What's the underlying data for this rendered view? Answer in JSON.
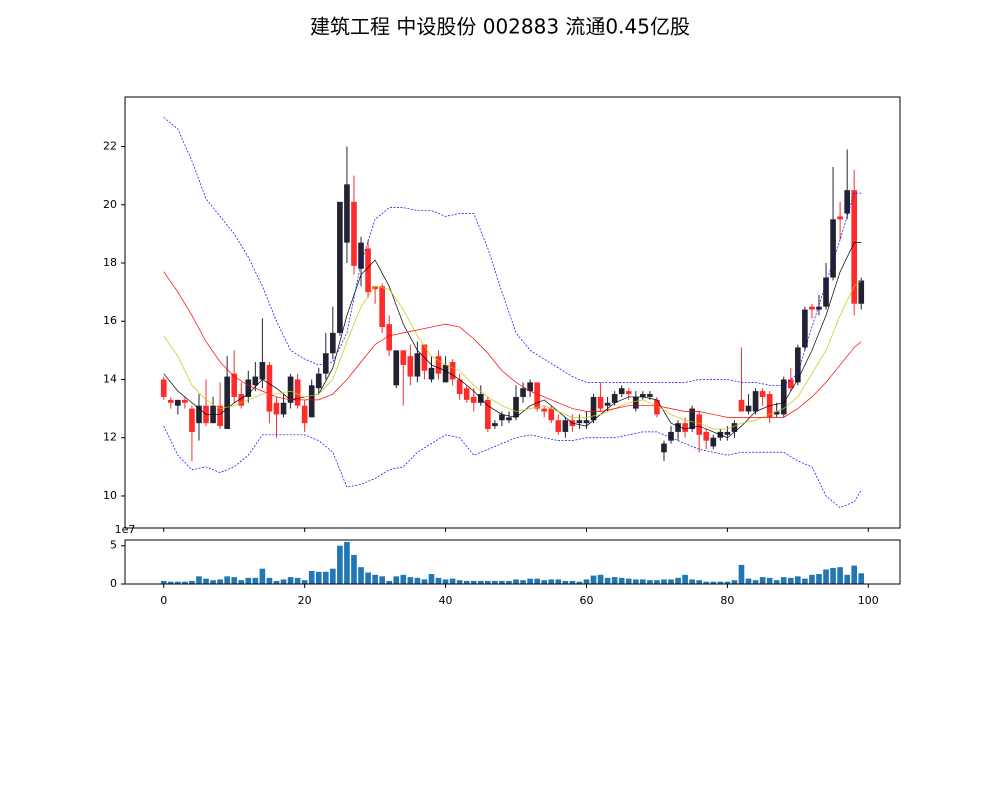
{
  "chart_data": {
    "type": "candlestick",
    "title": "建筑工程 中设股份 002883 流通0.45亿股",
    "x": [
      0,
      1,
      2,
      3,
      4,
      5,
      6,
      7,
      8,
      9,
      10,
      11,
      12,
      13,
      14,
      15,
      16,
      17,
      18,
      19,
      20,
      21,
      22,
      23,
      24,
      25,
      26,
      27,
      28,
      29,
      30,
      31,
      32,
      33,
      34,
      35,
      36,
      37,
      38,
      39,
      40,
      41,
      42,
      43,
      44,
      45,
      46,
      47,
      48,
      49,
      50,
      51,
      52,
      53,
      54,
      55,
      56,
      57,
      58,
      59,
      60,
      61,
      62,
      63,
      64,
      65,
      66,
      67,
      68,
      69,
      70,
      71,
      72,
      73,
      74,
      75,
      76,
      77,
      78,
      79,
      80,
      81,
      82,
      83,
      84,
      85,
      86,
      87,
      88,
      89,
      90,
      91,
      92,
      93,
      94,
      95,
      96,
      97,
      98,
      99
    ],
    "open": [
      14.0,
      13.3,
      13.1,
      13.3,
      13.0,
      12.5,
      13.1,
      12.5,
      13.1,
      12.3,
      14.2,
      13.5,
      13.4,
      13.8,
      14.0,
      14.5,
      13.2,
      12.8,
      13.2,
      14.0,
      13.1,
      12.7,
      13.7,
      14.2,
      14.9,
      15.6,
      18.7,
      20.1,
      17.8,
      18.5,
      17.2,
      17.2,
      15.9,
      13.8,
      15.0,
      14.8,
      14.1,
      15.2,
      14.0,
      14.8,
      13.9,
      14.6,
      14.0,
      13.7,
      13.4,
      13.2,
      13.3,
      12.4,
      12.6,
      12.6,
      12.7,
      13.4,
      13.6,
      13.9,
      13.0,
      13.0,
      12.6,
      12.2,
      12.6,
      12.5,
      12.5,
      12.6,
      13.4,
      13.1,
      13.2,
      13.5,
      13.6,
      13.0,
      13.4,
      13.4,
      13.3,
      11.5,
      11.9,
      12.2,
      12.5,
      12.3,
      12.8,
      12.2,
      11.7,
      12.0,
      12.1,
      12.2,
      13.3,
      12.9,
      12.9,
      13.6,
      13.5,
      12.8,
      12.8,
      14.0,
      13.9,
      15.1,
      16.5,
      16.4,
      16.5,
      17.5,
      19.6,
      19.7,
      20.5,
      16.6
    ],
    "high": [
      14.1,
      13.4,
      13.3,
      13.4,
      13.1,
      13.5,
      14.0,
      13.4,
      13.9,
      14.8,
      15.0,
      13.9,
      14.3,
      14.6,
      16.1,
      14.6,
      13.4,
      13.5,
      14.2,
      14.2,
      13.3,
      14.0,
      14.4,
      15.6,
      16.5,
      20.1,
      22.0,
      21.0,
      18.9,
      18.8,
      17.2,
      17.3,
      16.2,
      15.0,
      15.0,
      15.2,
      15.3,
      15.2,
      14.8,
      15.0,
      14.8,
      14.7,
      14.2,
      13.8,
      13.7,
      13.8,
      13.4,
      12.6,
      12.9,
      12.9,
      13.8,
      13.9,
      14.0,
      13.9,
      13.1,
      13.1,
      12.8,
      12.7,
      12.8,
      12.8,
      12.9,
      13.5,
      13.9,
      13.4,
      13.6,
      13.8,
      13.7,
      13.6,
      13.6,
      13.6,
      13.4,
      11.9,
      12.4,
      12.6,
      12.7,
      13.1,
      12.9,
      12.3,
      12.1,
      12.3,
      12.4,
      12.6,
      15.1,
      13.5,
      13.7,
      13.7,
      13.6,
      13.2,
      14.1,
      14.4,
      15.2,
      16.5,
      16.6,
      16.9,
      18.0,
      21.3,
      20.1,
      21.9,
      21.2,
      17.5
    ],
    "low": [
      13.3,
      13.0,
      12.8,
      13.0,
      11.2,
      11.9,
      12.4,
      12.5,
      12.3,
      12.3,
      13.2,
      13.0,
      13.2,
      13.6,
      13.7,
      12.5,
      12.0,
      12.7,
      13.0,
      13.0,
      12.2,
      12.7,
      13.5,
      14.0,
      14.7,
      15.5,
      18.0,
      17.6,
      17.2,
      16.8,
      16.6,
      15.6,
      14.8,
      13.7,
      13.1,
      13.8,
      13.9,
      14.0,
      13.9,
      14.0,
      13.9,
      13.8,
      13.3,
      13.2,
      12.9,
      13.1,
      12.2,
      12.3,
      12.4,
      12.5,
      12.6,
      13.2,
      13.4,
      12.9,
      12.7,
      12.5,
      12.1,
      12.0,
      12.2,
      12.3,
      12.3,
      12.5,
      12.9,
      12.9,
      13.1,
      13.4,
      13.3,
      12.9,
      13.3,
      13.3,
      12.7,
      11.2,
      11.8,
      11.9,
      12.0,
      12.2,
      11.5,
      11.6,
      11.6,
      11.9,
      11.9,
      12.0,
      12.9,
      12.8,
      12.8,
      13.1,
      12.5,
      12.7,
      12.7,
      13.6,
      13.8,
      15.0,
      16.1,
      16.2,
      16.4,
      17.4,
      18.8,
      19.5,
      16.2,
      16.4
    ],
    "close": [
      13.4,
      13.2,
      13.3,
      13.2,
      12.2,
      13.1,
      12.5,
      13.1,
      12.4,
      14.1,
      13.4,
      13.1,
      14.0,
      14.1,
      14.6,
      12.9,
      12.8,
      13.2,
      14.1,
      13.1,
      12.5,
      13.8,
      14.2,
      14.9,
      15.6,
      20.1,
      20.7,
      17.9,
      18.7,
      17.0,
      17.1,
      15.8,
      15.0,
      15.0,
      14.5,
      14.1,
      14.9,
      14.3,
      14.4,
      14.2,
      14.5,
      14.0,
      13.5,
      13.3,
      13.2,
      13.5,
      12.3,
      12.5,
      12.8,
      12.7,
      13.4,
      13.7,
      13.9,
      13.0,
      12.9,
      12.6,
      12.2,
      12.6,
      12.4,
      12.6,
      12.6,
      13.4,
      13.0,
      13.2,
      13.5,
      13.7,
      13.5,
      13.4,
      13.5,
      13.5,
      12.8,
      11.8,
      12.2,
      12.5,
      12.2,
      13.0,
      12.1,
      11.9,
      12.0,
      12.2,
      12.2,
      12.5,
      12.9,
      13.1,
      13.6,
      13.4,
      12.7,
      12.9,
      14.0,
      13.7,
      15.1,
      16.4,
      16.4,
      16.5,
      17.5,
      19.5,
      19.5,
      20.5,
      16.6,
      17.4
    ],
    "up_color": "#222233",
    "down_color": "#ff2a2a",
    "line_x": [
      0,
      2,
      4,
      6,
      8,
      10,
      12,
      14,
      16,
      18,
      20,
      22,
      24,
      26,
      28,
      30,
      32,
      34,
      36,
      38,
      40,
      42,
      44,
      46,
      48,
      50,
      52,
      54,
      56,
      58,
      60,
      62,
      64,
      66,
      68,
      70,
      72,
      74,
      76,
      78,
      80,
      82,
      84,
      86,
      88,
      90,
      92,
      94,
      96,
      98,
      99
    ],
    "lines": [
      {
        "color": "#000000",
        "style": "solid",
        "values": [
          14.2,
          13.6,
          13.2,
          12.8,
          12.8,
          13.2,
          13.5,
          14.0,
          13.7,
          13.3,
          13.4,
          13.5,
          14.4,
          16.2,
          17.6,
          18.1,
          17.2,
          15.9,
          15.0,
          14.5,
          14.3,
          14.0,
          13.6,
          13.1,
          12.8,
          12.7,
          13.1,
          13.3,
          12.9,
          12.5,
          12.4,
          12.8,
          13.2,
          13.4,
          13.4,
          13.3,
          12.5,
          12.3,
          12.4,
          12.2,
          12.0,
          12.4,
          12.9,
          13.1,
          13.2,
          14.0,
          15.0,
          16.2,
          17.7,
          18.7,
          18.7
        ]
      },
      {
        "color": "#c8c800",
        "style": "solid",
        "values": [
          15.5,
          14.8,
          13.8,
          13.3,
          13.0,
          13.1,
          13.3,
          13.5,
          13.5,
          13.6,
          13.4,
          13.5,
          14.0,
          15.3,
          16.5,
          17.2,
          17.1,
          16.4,
          15.5,
          14.8,
          14.5,
          14.3,
          13.8,
          13.4,
          13.1,
          12.9,
          13.0,
          13.1,
          12.9,
          12.7,
          12.7,
          12.8,
          13.0,
          13.2,
          13.3,
          13.1,
          12.8,
          12.6,
          12.5,
          12.3,
          12.3,
          12.5,
          12.6,
          12.8,
          13.0,
          13.4,
          14.2,
          15.0,
          16.2,
          17.2,
          17.4
        ]
      },
      {
        "color": "#ff0000",
        "style": "solid",
        "values": [
          17.7,
          17.0,
          16.2,
          15.3,
          14.6,
          14.1,
          13.8,
          13.6,
          13.4,
          13.3,
          13.3,
          13.3,
          13.5,
          14.0,
          14.6,
          15.2,
          15.5,
          15.6,
          15.7,
          15.8,
          15.9,
          15.8,
          15.4,
          14.9,
          14.3,
          13.9,
          13.6,
          13.4,
          13.2,
          13.0,
          12.9,
          12.9,
          13.0,
          13.1,
          13.1,
          13.1,
          13.0,
          12.9,
          12.9,
          12.8,
          12.7,
          12.7,
          12.7,
          12.7,
          12.7,
          13.0,
          13.4,
          13.9,
          14.5,
          15.1,
          15.3
        ]
      },
      {
        "color": "#0000ff",
        "style": "dashed",
        "values": [
          23.0,
          22.6,
          21.5,
          20.2,
          19.6,
          19.0,
          18.2,
          17.2,
          16.0,
          15.0,
          14.7,
          14.5,
          14.6,
          15.6,
          18.0,
          19.5,
          19.9,
          19.9,
          19.8,
          19.8,
          19.6,
          19.7,
          19.7,
          18.5,
          17.0,
          15.6,
          15.0,
          14.7,
          14.4,
          14.1,
          13.9,
          13.9,
          13.9,
          13.9,
          13.9,
          13.9,
          13.9,
          13.9,
          14.0,
          14.0,
          14.0,
          13.9,
          13.9,
          13.8,
          13.8,
          14.2,
          15.8,
          17.3,
          18.8,
          20.4,
          20.4
        ]
      },
      {
        "color": "#0000ff",
        "style": "dashed",
        "values": [
          12.4,
          11.4,
          10.9,
          11.0,
          10.8,
          11.0,
          11.4,
          12.1,
          12.1,
          12.1,
          12.1,
          11.9,
          11.5,
          10.3,
          10.4,
          10.6,
          10.9,
          11.0,
          11.5,
          11.8,
          12.1,
          12.0,
          11.4,
          11.6,
          11.8,
          12.0,
          12.1,
          12.0,
          11.9,
          11.9,
          12.0,
          12.0,
          12.0,
          12.1,
          12.2,
          12.2,
          12.0,
          11.8,
          11.6,
          11.5,
          11.4,
          11.5,
          11.5,
          11.5,
          11.5,
          11.2,
          11.0,
          10.0,
          9.6,
          9.8,
          10.2
        ]
      }
    ],
    "xlim": [
      -5.5,
      104.5
    ],
    "xticks": [
      0,
      20,
      40,
      60,
      80,
      100
    ],
    "ylim": [
      8.9,
      23.7
    ],
    "yticks": [
      10,
      12,
      14,
      16,
      18,
      20,
      22
    ],
    "volume": {
      "type": "bar",
      "color": "#1f77b4",
      "offset_label": "1e7",
      "ylim": [
        0,
        5.75
      ],
      "yticks": [
        0,
        5
      ],
      "values": [
        0.4,
        0.3,
        0.3,
        0.3,
        0.4,
        1.0,
        0.7,
        0.5,
        0.6,
        1.0,
        0.9,
        0.5,
        0.8,
        0.8,
        2.0,
        0.8,
        0.4,
        0.6,
        0.9,
        0.8,
        0.5,
        1.7,
        1.6,
        1.6,
        2.0,
        5.0,
        5.5,
        3.8,
        2.2,
        1.5,
        1.2,
        1.0,
        0.4,
        1.0,
        1.2,
        0.9,
        0.8,
        0.6,
        1.3,
        0.8,
        0.6,
        0.7,
        0.5,
        0.4,
        0.4,
        0.4,
        0.4,
        0.4,
        0.4,
        0.4,
        0.6,
        0.5,
        0.7,
        0.7,
        0.5,
        0.6,
        0.6,
        0.4,
        0.4,
        0.3,
        0.6,
        1.1,
        1.2,
        0.8,
        0.9,
        0.8,
        0.7,
        0.6,
        0.6,
        0.5,
        0.5,
        0.6,
        0.6,
        0.8,
        1.2,
        0.6,
        0.5,
        0.3,
        0.3,
        0.3,
        0.3,
        0.5,
        2.5,
        0.7,
        0.5,
        0.9,
        0.8,
        0.5,
        0.9,
        0.8,
        1.0,
        0.7,
        1.2,
        1.3,
        1.9,
        2.1,
        2.2,
        1.2,
        2.4,
        1.4
      ]
    }
  }
}
